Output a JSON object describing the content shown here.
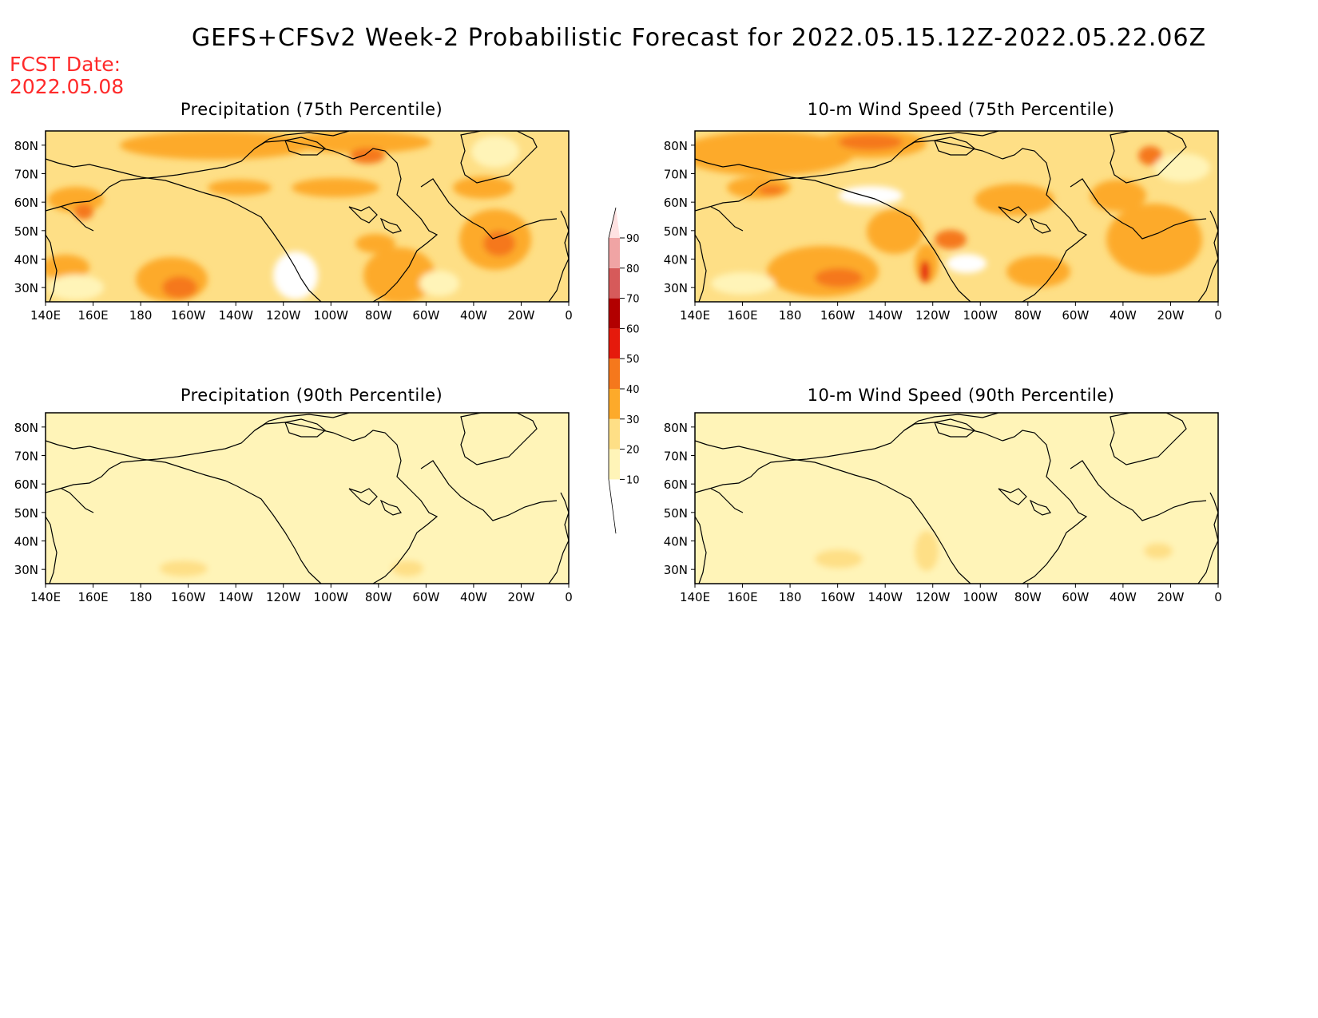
{
  "title": "GEFS+CFSv2 Week-2 Probabilistic Forecast for 2022.05.15.12Z-2022.05.22.06Z",
  "fcst_label": "FCST Date:",
  "fcst_date": "2022.05.08",
  "panels": [
    {
      "title": "Precipitation (75th Percentile)",
      "base_level": 1
    },
    {
      "title": "10-m Wind Speed (75th Percentile)",
      "base_level": 1
    },
    {
      "title": "Precipitation (90th Percentile)",
      "base_level": 0
    },
    {
      "title": "10-m Wind Speed (90th Percentile)",
      "base_level": 0
    }
  ],
  "lat_labels": [
    "80N",
    "70N",
    "60N",
    "50N",
    "40N",
    "30N"
  ],
  "lon_labels": [
    "140E",
    "160E",
    "180",
    "160W",
    "140W",
    "120W",
    "100W",
    "80W",
    "60W",
    "40W",
    "20W",
    "0"
  ],
  "colorbar": {
    "levels": [
      "10",
      "20",
      "30",
      "40",
      "50",
      "60",
      "70",
      "80",
      "90"
    ],
    "colors": [
      "#ffffff",
      "#fff4b8",
      "#fedf86",
      "#fdaa2a",
      "#f5781c",
      "#e51a0c",
      "#b20000",
      "#d65a5a",
      "#f0a4a4",
      "#ffe2e2"
    ]
  }
}
